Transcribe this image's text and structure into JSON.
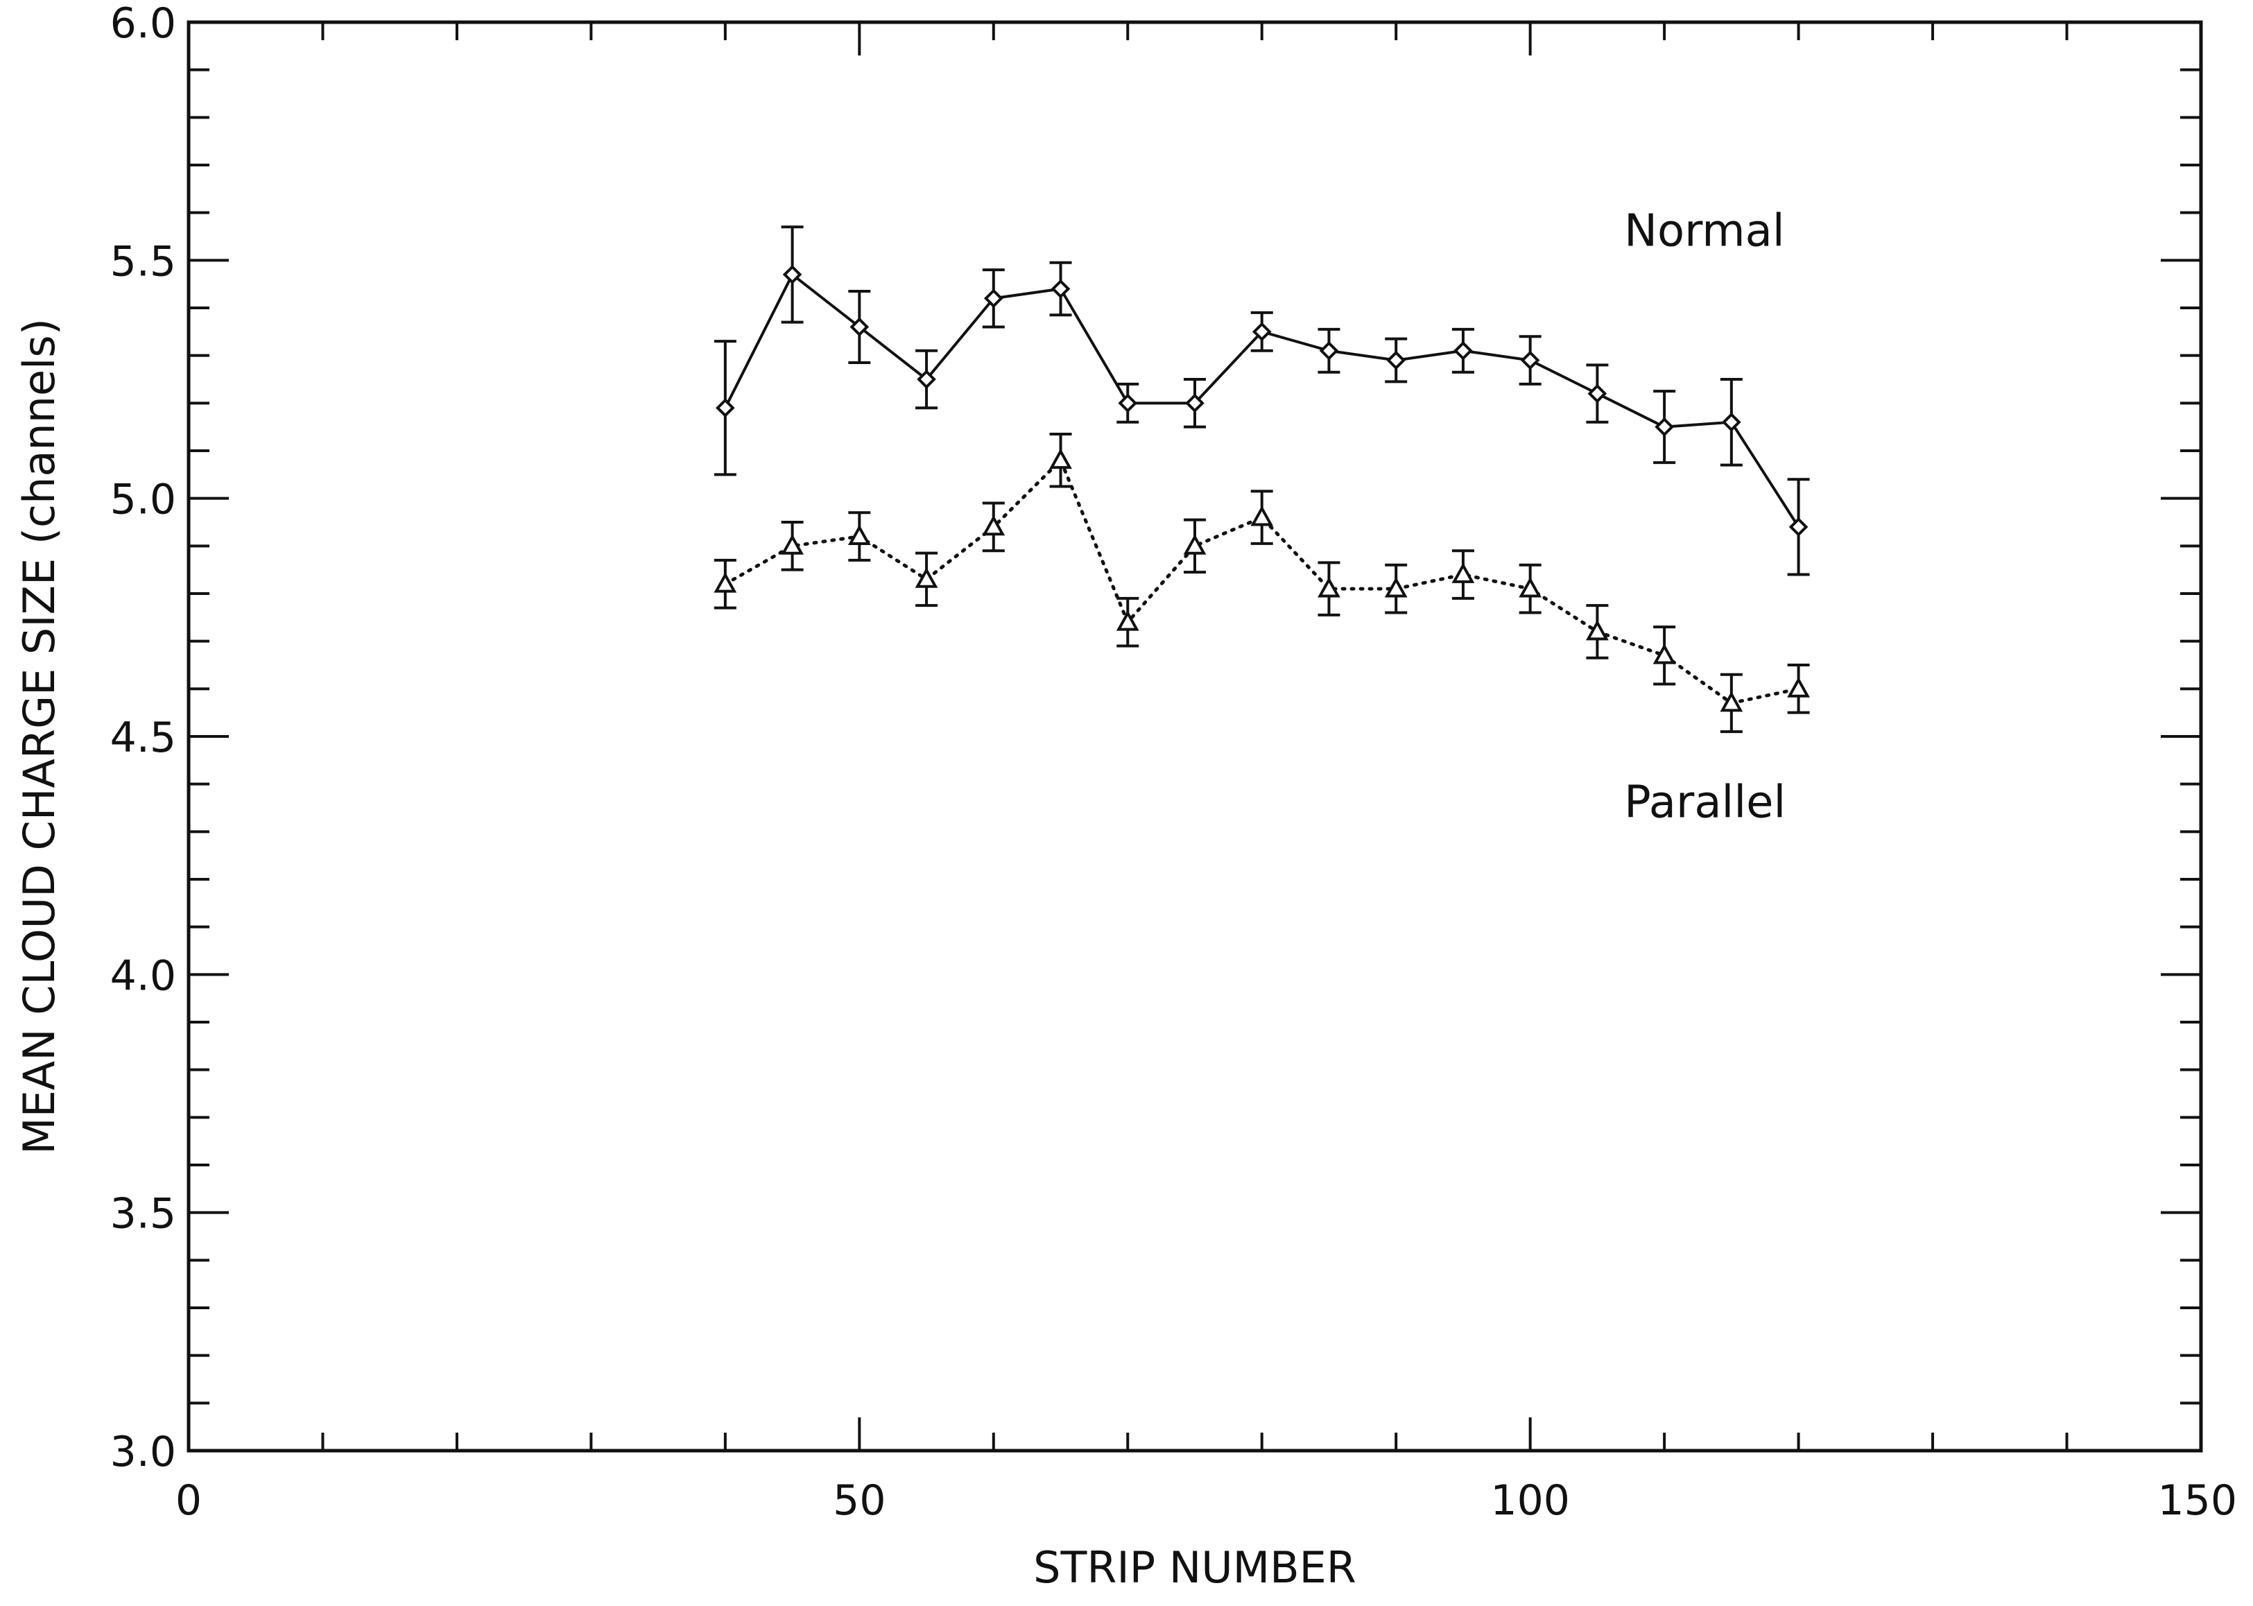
{
  "chart_data": {
    "type": "line",
    "xlabel": "STRIP NUMBER",
    "ylabel": "MEAN CLOUD CHARGE SIZE (channels)",
    "xlim": [
      0,
      150
    ],
    "ylim": [
      3.0,
      6.0
    ],
    "xticks": [
      "0",
      "50",
      "100",
      "150"
    ],
    "xtick_values": [
      0,
      50,
      100,
      150
    ],
    "yticks": [
      "3.0",
      "3.5",
      "4.0",
      "4.5",
      "5.0",
      "5.5",
      "6.0"
    ],
    "ytick_values": [
      3.0,
      3.5,
      4.0,
      4.5,
      5.0,
      5.5,
      6.0
    ],
    "grid": false,
    "series": [
      {
        "name": "Normal",
        "marker": "diamond",
        "line": "solid",
        "x": [
          40,
          45,
          50,
          55,
          60,
          65,
          70,
          75,
          80,
          85,
          90,
          95,
          100,
          105,
          110,
          115,
          120
        ],
        "y": [
          5.19,
          5.47,
          5.36,
          5.25,
          5.42,
          5.44,
          5.2,
          5.2,
          5.35,
          5.31,
          5.29,
          5.31,
          5.29,
          5.22,
          5.15,
          5.16,
          4.94
        ],
        "yerr": [
          0.14,
          0.1,
          0.075,
          0.06,
          0.06,
          0.055,
          0.04,
          0.05,
          0.04,
          0.045,
          0.045,
          0.045,
          0.05,
          0.06,
          0.075,
          0.09,
          0.1
        ]
      },
      {
        "name": "Parallel",
        "marker": "triangle",
        "line": "dotted",
        "x": [
          40,
          45,
          50,
          55,
          60,
          65,
          70,
          75,
          80,
          85,
          90,
          95,
          100,
          105,
          110,
          115,
          120
        ],
        "y": [
          4.82,
          4.9,
          4.92,
          4.83,
          4.94,
          5.08,
          4.74,
          4.9,
          4.96,
          4.81,
          4.81,
          4.84,
          4.81,
          4.72,
          4.67,
          4.57,
          4.6
        ],
        "yerr": [
          0.05,
          0.05,
          0.05,
          0.055,
          0.05,
          0.055,
          0.05,
          0.055,
          0.055,
          0.055,
          0.05,
          0.05,
          0.05,
          0.055,
          0.06,
          0.06,
          0.05
        ]
      }
    ],
    "annotations": [
      {
        "text": "Normal",
        "x": 107,
        "y": 5.53
      },
      {
        "text": "Parallel",
        "x": 107,
        "y": 4.33
      }
    ]
  }
}
